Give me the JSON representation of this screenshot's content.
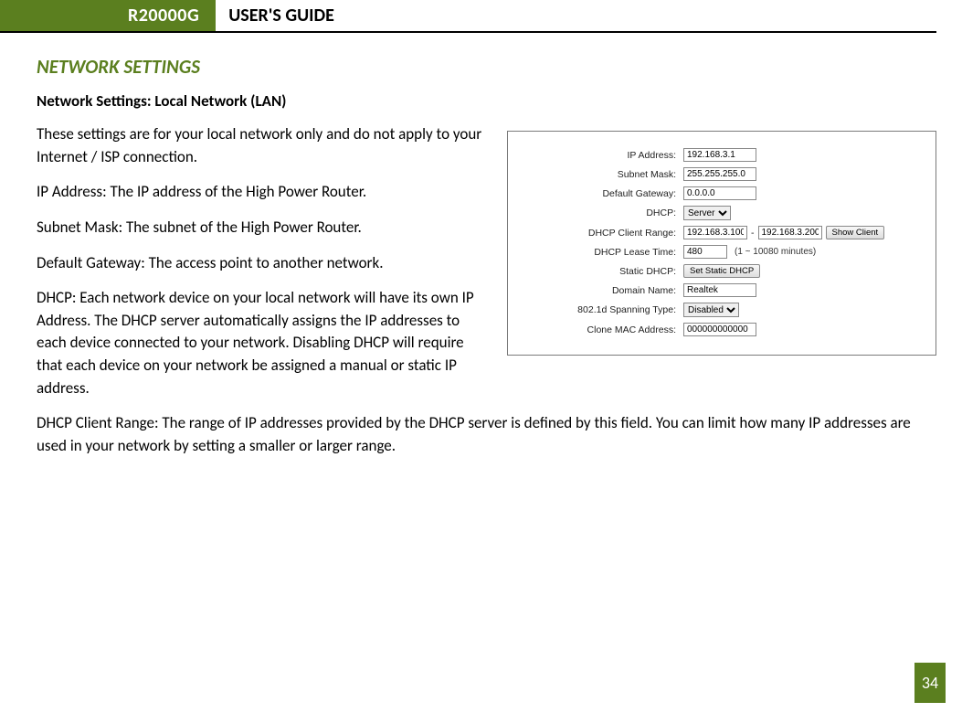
{
  "header": {
    "badge": "R20000G",
    "title": "USER'S GUIDE"
  },
  "section": {
    "title": "NETWORK SETTINGS",
    "subheading": "Network Settings: Local Network (LAN)"
  },
  "paragraphs": {
    "intro": "These settings are for your local network only and do not apply to your Internet / ISP connection.",
    "ip": "IP Address: The IP address of the High Power Router.",
    "subnet": "Subnet Mask: The subnet of the High Power Router.",
    "gateway": "Default Gateway: The access point to another network.",
    "dhcp": "DHCP: Each network device on your local network will have its own IP Address.  The DHCP server automatically assigns the IP addresses to each device connected to your network.  Disabling DHCP will require that each device on your network be assigned a manual or static IP address.",
    "range": "DHCP Client Range: The range of IP addresses provided by the DHCP server is defined by this field.  You can limit how many IP addresses are used in your network by setting a smaller or larger range."
  },
  "panel": {
    "labels": {
      "ip": "IP Address:",
      "subnet": "Subnet Mask:",
      "gateway": "Default Gateway:",
      "dhcp": "DHCP:",
      "range": "DHCP Client Range:",
      "lease": "DHCP Lease Time:",
      "static": "Static DHCP:",
      "domain": "Domain Name:",
      "spanning": "802.1d Spanning Type:",
      "clone": "Clone MAC Address:"
    },
    "values": {
      "ip": "192.168.3.1",
      "subnet": "255.255.255.0",
      "gateway": "0.0.0.0",
      "dhcp_mode": "Server",
      "range_start": "192.168.3.100",
      "range_sep": "-",
      "range_end": "192.168.3.200",
      "show_client_btn": "Show Client",
      "lease": "480",
      "lease_hint": "(1 ~ 10080 minutes)",
      "static_btn": "Set Static DHCP",
      "domain": "Realtek",
      "spanning": "Disabled",
      "clone": "000000000000"
    }
  },
  "page_number": "34",
  "colors": {
    "accent": "#5b7f1f"
  }
}
